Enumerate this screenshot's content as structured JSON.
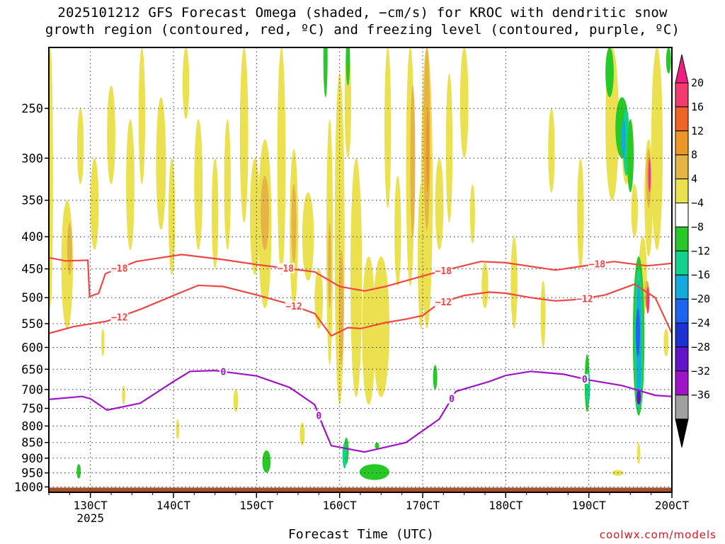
{
  "title": {
    "line1": "2025101212 GFS Forecast Omega (shaded, −cm/s) for KROC with dendritic snow",
    "line2": "growth region (contoured, red, ºC) and freezing level (contoured, purple, ºC)"
  },
  "xlabel": "Forecast Time (UTC)",
  "credit": "coolwx.com/models",
  "chart_data": {
    "type": "heatmap",
    "y_axis": {
      "label": "",
      "scale": "log-pressure",
      "range": [
        1020,
        200
      ],
      "ticks": [
        250,
        300,
        350,
        400,
        450,
        500,
        550,
        600,
        650,
        700,
        750,
        800,
        850,
        900,
        950,
        1000
      ]
    },
    "x_axis": {
      "range_days": [
        12.5,
        20.0
      ],
      "ticks": [
        {
          "day": 13,
          "label": "130CT",
          "sublabel": "2025"
        },
        {
          "day": 14,
          "label": "140CT",
          "sublabel": ""
        },
        {
          "day": 15,
          "label": "150CT",
          "sublabel": ""
        },
        {
          "day": 16,
          "label": "160CT",
          "sublabel": ""
        },
        {
          "day": 17,
          "label": "170CT",
          "sublabel": ""
        },
        {
          "day": 18,
          "label": "180CT",
          "sublabel": ""
        },
        {
          "day": 19,
          "label": "190CT",
          "sublabel": ""
        },
        {
          "day": 20,
          "label": "200CT",
          "sublabel": ""
        }
      ]
    },
    "grid": true,
    "colorbar": {
      "labels": [
        "20",
        "16",
        "12",
        "8",
        "4",
        "−4",
        "−8",
        "−12",
        "−16",
        "−20",
        "−24",
        "−28",
        "−32",
        "−36"
      ],
      "colors": [
        "#f03c6e",
        "#f06428",
        "#ec9628",
        "#e6b446",
        "#ebe150",
        "#ffffff",
        "#28c828",
        "#14d28c",
        "#14aadc",
        "#1e64f0",
        "#1e32d2",
        "#6414c8",
        "#a014c8",
        "#a0a0a0"
      ],
      "top_arrow_color": "#f01e82",
      "bottom_arrow_color": "#000000"
    },
    "contours": {
      "dgz_minus18": {
        "color": "#f04646",
        "label": "−18",
        "points": [
          [
            12.5,
            432
          ],
          [
            12.7,
            437
          ],
          [
            12.97,
            436
          ],
          [
            12.99,
            498
          ],
          [
            13.1,
            492
          ],
          [
            13.18,
            458
          ],
          [
            13.55,
            438
          ],
          [
            14.1,
            427
          ],
          [
            14.6,
            435
          ],
          [
            15.0,
            443
          ],
          [
            15.3,
            448
          ],
          [
            15.7,
            455
          ],
          [
            16.0,
            480
          ],
          [
            16.3,
            488
          ],
          [
            16.55,
            480
          ],
          [
            16.8,
            470
          ],
          [
            17.1,
            458
          ],
          [
            17.7,
            438
          ],
          [
            18.0,
            440
          ],
          [
            18.3,
            446
          ],
          [
            18.6,
            452
          ],
          [
            18.9,
            446
          ],
          [
            19.3,
            438
          ],
          [
            19.7,
            445
          ],
          [
            20.0,
            441
          ]
        ],
        "label_positions": [
          13.35,
          15.35,
          17.25,
          19.1
        ]
      },
      "dgz_minus12": {
        "color": "#f04646",
        "label": "−12",
        "points": [
          [
            12.5,
            570
          ],
          [
            12.8,
            556
          ],
          [
            13.2,
            545
          ],
          [
            13.6,
            522
          ],
          [
            14.1,
            490
          ],
          [
            14.3,
            478
          ],
          [
            14.6,
            480
          ],
          [
            15.0,
            495
          ],
          [
            15.35,
            510
          ],
          [
            15.7,
            530
          ],
          [
            15.9,
            575
          ],
          [
            16.1,
            558
          ],
          [
            16.25,
            560
          ],
          [
            16.55,
            548
          ],
          [
            16.8,
            541
          ],
          [
            17.0,
            534
          ],
          [
            17.2,
            510
          ],
          [
            17.5,
            496
          ],
          [
            17.8,
            490
          ],
          [
            18.0,
            492
          ],
          [
            18.3,
            500
          ],
          [
            18.6,
            506
          ],
          [
            18.9,
            503
          ],
          [
            19.2,
            495
          ],
          [
            19.55,
            476
          ],
          [
            19.8,
            500
          ],
          [
            20.0,
            570
          ]
        ],
        "label_positions": [
          13.35,
          15.45,
          17.25,
          18.95
        ]
      },
      "freezing_0": {
        "color": "#a014c8",
        "label": "0",
        "points": [
          [
            12.5,
            726
          ],
          [
            12.9,
            718
          ],
          [
            13.0,
            724
          ],
          [
            13.2,
            755
          ],
          [
            13.6,
            736
          ],
          [
            14.0,
            680
          ],
          [
            14.2,
            655
          ],
          [
            14.5,
            653
          ],
          [
            15.0,
            666
          ],
          [
            15.4,
            695
          ],
          [
            15.7,
            740
          ],
          [
            15.8,
            800
          ],
          [
            15.9,
            860
          ],
          [
            16.3,
            880
          ],
          [
            16.8,
            850
          ],
          [
            17.2,
            780
          ],
          [
            17.4,
            705
          ],
          [
            17.8,
            680
          ],
          [
            18.0,
            665
          ],
          [
            18.3,
            655
          ],
          [
            18.7,
            662
          ],
          [
            19.0,
            676
          ],
          [
            19.4,
            690
          ],
          [
            19.8,
            715
          ],
          [
            20.0,
            718
          ]
        ],
        "label_positions": [
          14.6,
          15.75,
          17.35,
          18.95
        ]
      }
    },
    "features": {
      "terrain_color": "#a0522d",
      "surface_pressure": 1000
    }
  }
}
